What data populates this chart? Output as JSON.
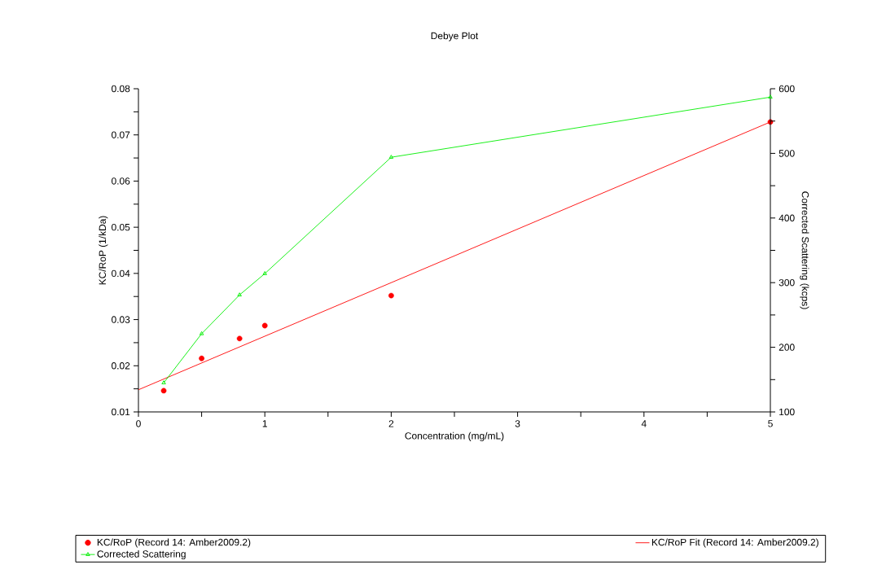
{
  "chart_data": {
    "type": "line",
    "title": "Debye Plot",
    "xlabel": "Concentration (mg/mL)",
    "ylabel": "KC/RoP (1/kDa)",
    "y2label": "Corrected Scattering (kcps)",
    "xlim": [
      0,
      5
    ],
    "ylim": [
      0.01,
      0.08
    ],
    "y2lim": [
      100,
      600
    ],
    "xticks": [
      0,
      {
        "value": 0.5,
        "label": null
      },
      1,
      {
        "value": 1.5,
        "label": null
      },
      2,
      {
        "value": 2.5,
        "label": null
      },
      3,
      {
        "value": 3.5,
        "label": null
      },
      4,
      {
        "value": 4.5,
        "label": null
      },
      5
    ],
    "yticks": [
      0.01,
      {
        "value": 0.015,
        "label": null
      },
      0.02,
      {
        "value": 0.025,
        "label": null
      },
      0.03,
      {
        "value": 0.035,
        "label": null
      },
      0.04,
      {
        "value": 0.045,
        "label": null
      },
      0.05,
      {
        "value": 0.055,
        "label": null
      },
      0.06,
      {
        "value": 0.065,
        "label": null
      },
      0.07,
      {
        "value": 0.075,
        "label": null
      },
      0.08
    ],
    "y2ticks": [
      100,
      {
        "value": 150,
        "label": null
      },
      200,
      {
        "value": 250,
        "label": null
      },
      300,
      {
        "value": 350,
        "label": null
      },
      400,
      {
        "value": 450,
        "label": null
      },
      500,
      {
        "value": 550,
        "label": null
      },
      600
    ],
    "legend": "bottom",
    "series": [
      {
        "name": "KC/RoP (Record 14: Amber2009.2)",
        "type": "scatter",
        "color": "#ff0000",
        "marker": "circle",
        "x": [
          0.2,
          0.5,
          0.8,
          1,
          2,
          5
        ],
        "values": [
          0.0146,
          0.0216,
          0.0259,
          0.0287,
          0.0352,
          0.0728
        ]
      },
      {
        "name": "KC/RoP Fit (Record 14: Amber2009.2)",
        "color": "#ff0000",
        "marker": "none",
        "x": [
          0,
          5
        ],
        "values": [
          0.0148,
          0.0728
        ]
      },
      {
        "name": "Corrected Scattering",
        "color": "#00ee00",
        "marker": "triangle",
        "axis": "y2",
        "x": [
          0.2,
          0.5,
          0.8,
          1,
          2,
          5
        ],
        "values": [
          145,
          221,
          281,
          314,
          494,
          587
        ]
      }
    ]
  }
}
